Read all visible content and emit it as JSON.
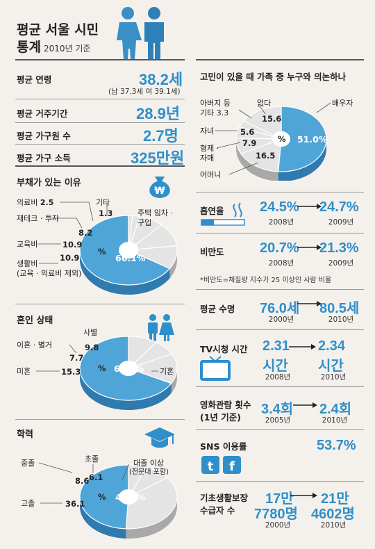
{
  "header": {
    "title_line1": "평균 서울 시민",
    "title_line2": "통계",
    "title_sub": "2010년 기준"
  },
  "stats": [
    {
      "label": "평균 연령",
      "value": "38.2세",
      "note": "(남 37.3세 여 39.1세)"
    },
    {
      "label": "평균 거주기간",
      "value": "28.9년"
    },
    {
      "label": "평균 가구원 수",
      "value": "2.7명"
    },
    {
      "label": "평균 가구 소득",
      "value": "325만원"
    }
  ],
  "debt": {
    "title": "부채가 있는 이유",
    "labels": {
      "medical": "의료비",
      "medical_v": "2.5",
      "invest": "재테크 · 투자",
      "edu": "교육비",
      "living": "생활비",
      "living_note": "(교육 · 의료비 제외)",
      "other": "기타",
      "housing": "주택 임차 · 구입"
    },
    "center": "%"
  },
  "marriage": {
    "title": "혼인 상태",
    "labels": {
      "widowed": "사별",
      "divorced": "이혼 · 별거",
      "single": "미혼",
      "married": "기혼"
    },
    "center": "%"
  },
  "education": {
    "title": "학력",
    "labels": {
      "middle": "중졸",
      "elementary": "초졸",
      "high": "고졸",
      "college": "대졸 이상",
      "college_note": "(전문대 포함)"
    },
    "center": "%"
  },
  "consult": {
    "title": "고민이 있을 때 가족 중 누구와 의논하나",
    "labels": {
      "father": "아버지 등",
      "father2": "기타 3.3",
      "none": "없다",
      "spouse": "배우자",
      "children": "자녀",
      "siblings": "형제 ·",
      "siblings2": "자매",
      "mother": "어머니"
    },
    "center": "%"
  },
  "trends": [
    {
      "label": "흡연율",
      "from": "24.5%",
      "from_year": "2008년",
      "to": "24.7%",
      "to_year": "2009년"
    },
    {
      "label": "비만도",
      "from": "20.7%",
      "from_year": "2008년",
      "to": "21.3%",
      "to_year": "2009년",
      "note": "*비만도=체질량 지수가 25 이상인 사람 비율"
    },
    {
      "label": "평균 수명",
      "from": "76.0세",
      "from_year": "2000년",
      "to": "80.5세",
      "to_year": "2010년"
    },
    {
      "label": "TV시청 시간",
      "from": "2.31",
      "from2": "시간",
      "from_year": "2008년",
      "to": "2.34",
      "to2": "시간",
      "to_year": "2010년"
    },
    {
      "label": "영화관람 횟수",
      "label2": "(1년 기준)",
      "from": "3.4회",
      "from_year": "2005년",
      "to": "2.4회",
      "to_year": "2010년"
    },
    {
      "label": "SNS 이용률",
      "value": "53.7%"
    },
    {
      "label": "기초생활보장",
      "label2": "수급자 수",
      "from": "17만",
      "from2": "7780명",
      "from_year": "2000년",
      "to": "21만",
      "to2": "4602명",
      "to_year": "2010년"
    }
  ],
  "colors": {
    "accent": "#2e8fca",
    "pie_blue": "#4fa5d8",
    "pie_gray": "#e4e4e4",
    "pie_side": "#a9a9a9",
    "pie_blue_side": "#2f7bb0"
  },
  "chart_data": [
    {
      "type": "pie",
      "title": "부채가 있는 이유",
      "categories": [
        "주택 임차 · 구입",
        "생활비",
        "교육비",
        "재테크 · 투자",
        "의료비",
        "기타"
      ],
      "values": [
        66.1,
        10.9,
        10.9,
        8.2,
        2.5,
        1.3
      ]
    },
    {
      "type": "pie",
      "title": "혼인 상태",
      "categories": [
        "기혼",
        "미혼",
        "이혼 · 별거",
        "사별"
      ],
      "values": [
        67.2,
        15.3,
        7.7,
        9.8
      ]
    },
    {
      "type": "pie",
      "title": "학력",
      "categories": [
        "대졸 이상",
        "고졸",
        "중졸",
        "초졸"
      ],
      "values": [
        49.2,
        36.1,
        8.6,
        6.1
      ]
    },
    {
      "type": "pie",
      "title": "고민이 있을 때 가족 중 누구와 의논하나",
      "categories": [
        "배우자",
        "어머니",
        "형제 · 자매",
        "자녀",
        "아버지 등 기타",
        "없다"
      ],
      "values": [
        51.0,
        16.5,
        7.9,
        5.6,
        3.3,
        15.6
      ]
    }
  ]
}
